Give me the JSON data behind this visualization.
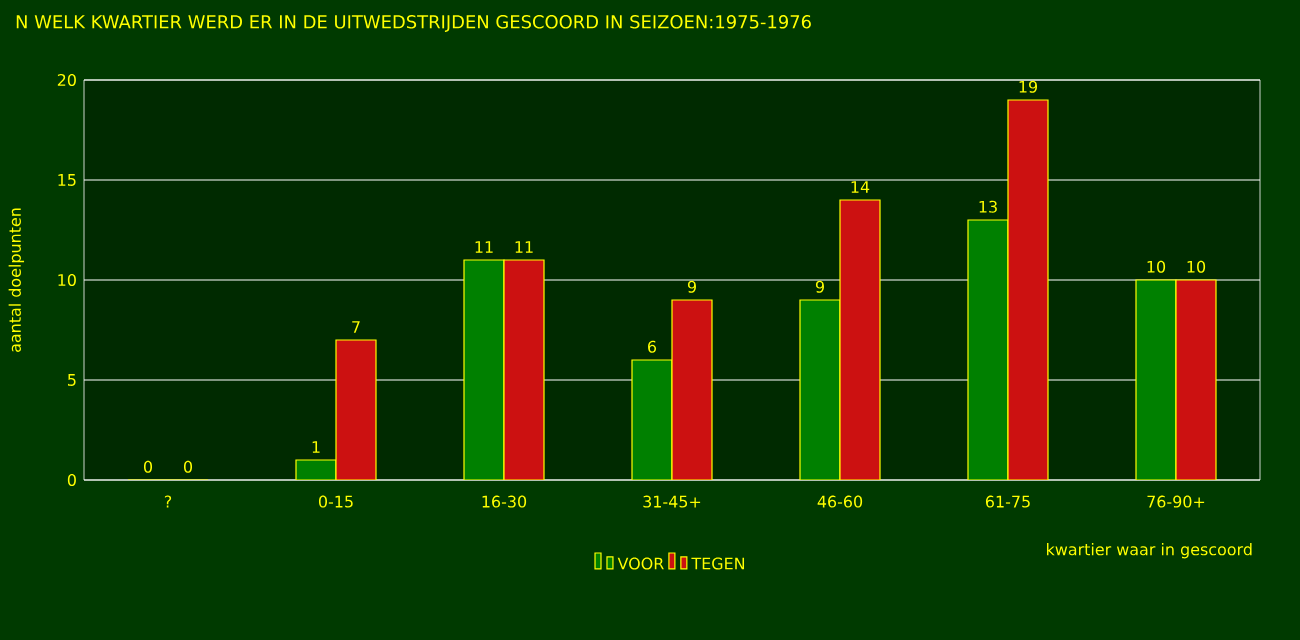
{
  "chart_data": {
    "type": "bar",
    "title": "N WELK KWARTIER WERD ER IN DE UITWEDSTRIJDEN GESCOORD IN SEIZOEN:1975-1976",
    "xlabel": "kwartier waar in gescoord",
    "ylabel": "aantal doelpunten",
    "categories": [
      "?",
      "0-15",
      "16-30",
      "31-45+",
      "46-60",
      "61-75",
      "76-90+"
    ],
    "series": [
      {
        "name": "VOOR",
        "color": "#008000",
        "values": [
          0,
          1,
          11,
          6,
          9,
          13,
          10
        ]
      },
      {
        "name": "TEGEN",
        "color": "#cc1111",
        "values": [
          0,
          7,
          11,
          9,
          14,
          19,
          10
        ]
      }
    ],
    "ylim": [
      0,
      20
    ],
    "yticks": [
      0,
      5,
      10,
      15,
      20
    ],
    "grid": "y",
    "legend": "bottom",
    "data_labels": true
  }
}
